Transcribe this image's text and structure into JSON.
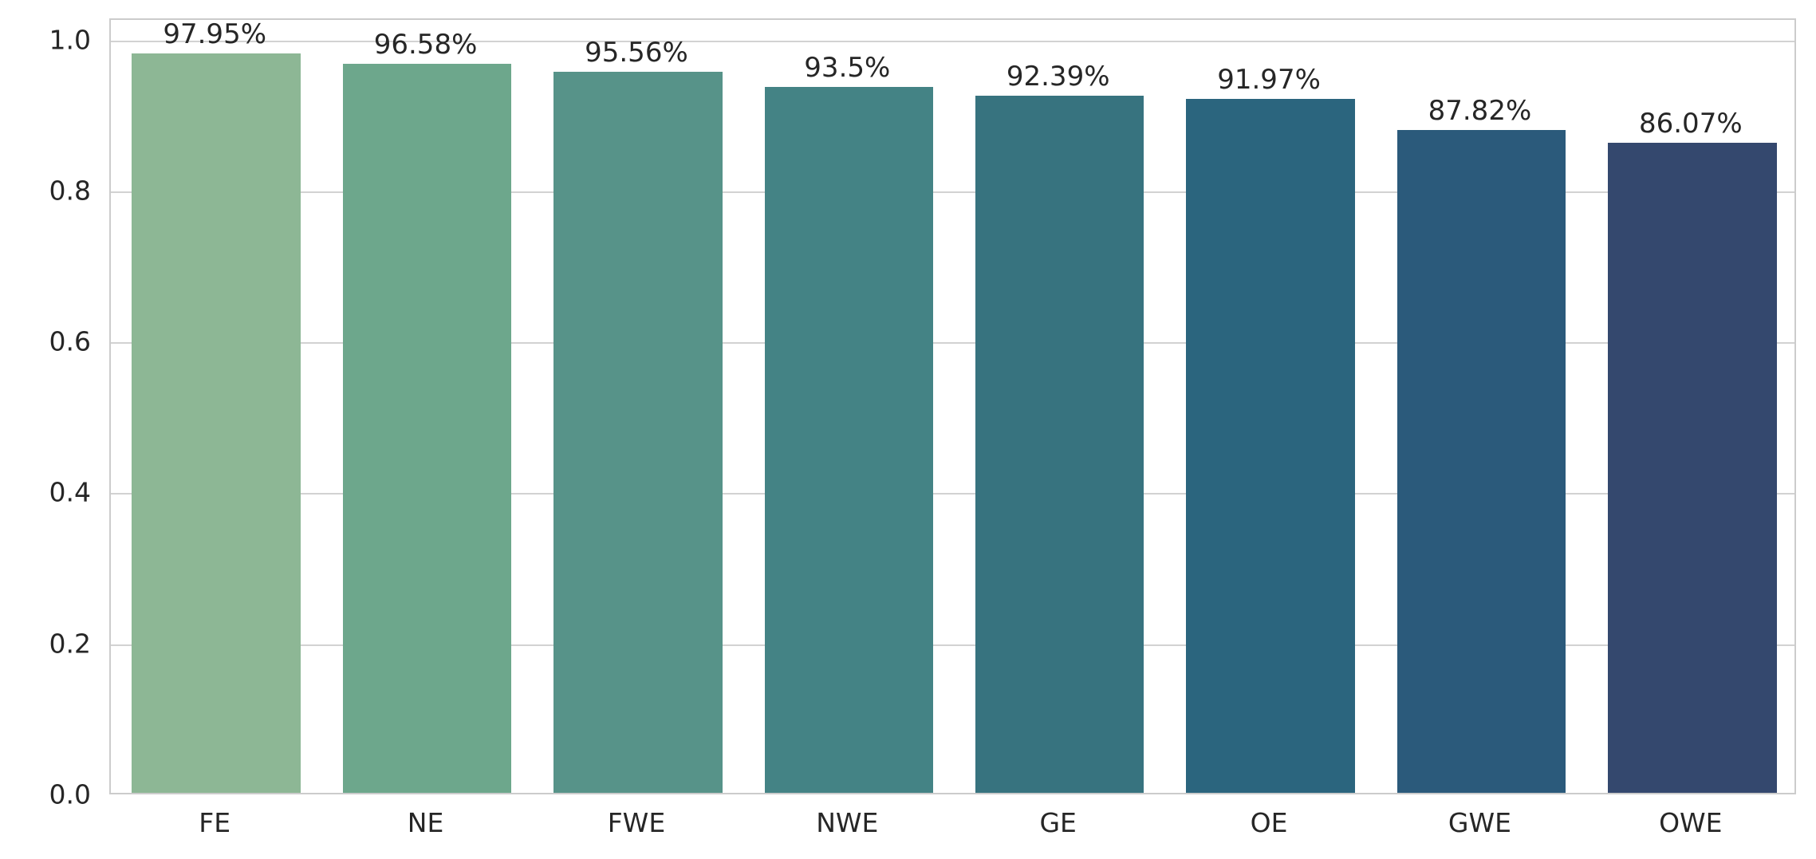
{
  "chart_data": {
    "type": "bar",
    "title": "",
    "xlabel": "",
    "ylabel": "",
    "categories": [
      "FE",
      "NE",
      "FWE",
      "NWE",
      "GE",
      "OE",
      "GWE",
      "OWE"
    ],
    "values": [
      0.9795,
      0.9658,
      0.9556,
      0.935,
      0.9239,
      0.9197,
      0.8782,
      0.8607
    ],
    "value_labels": [
      "97.95%",
      "96.58%",
      "95.56%",
      "93.5%",
      "92.39%",
      "91.97%",
      "87.82%",
      "86.07%"
    ],
    "bar_colors": [
      "#8db795",
      "#6da78c",
      "#579389",
      "#448385",
      "#37737f",
      "#2b657e",
      "#2b5a7b",
      "#34486e"
    ],
    "ylim": [
      0,
      1.028
    ],
    "yticks": [
      0.0,
      0.2,
      0.4,
      0.6,
      0.8,
      1.0
    ],
    "ytick_labels": [
      "0.0",
      "0.2",
      "0.4",
      "0.6",
      "0.8",
      "1.0"
    ],
    "grid": "horizontal",
    "grid_color": "#d2d2d2",
    "axis_edge_color": "#cccccc",
    "text_color": "#262626",
    "legend": "none",
    "bar_width_fraction": 0.8
  }
}
